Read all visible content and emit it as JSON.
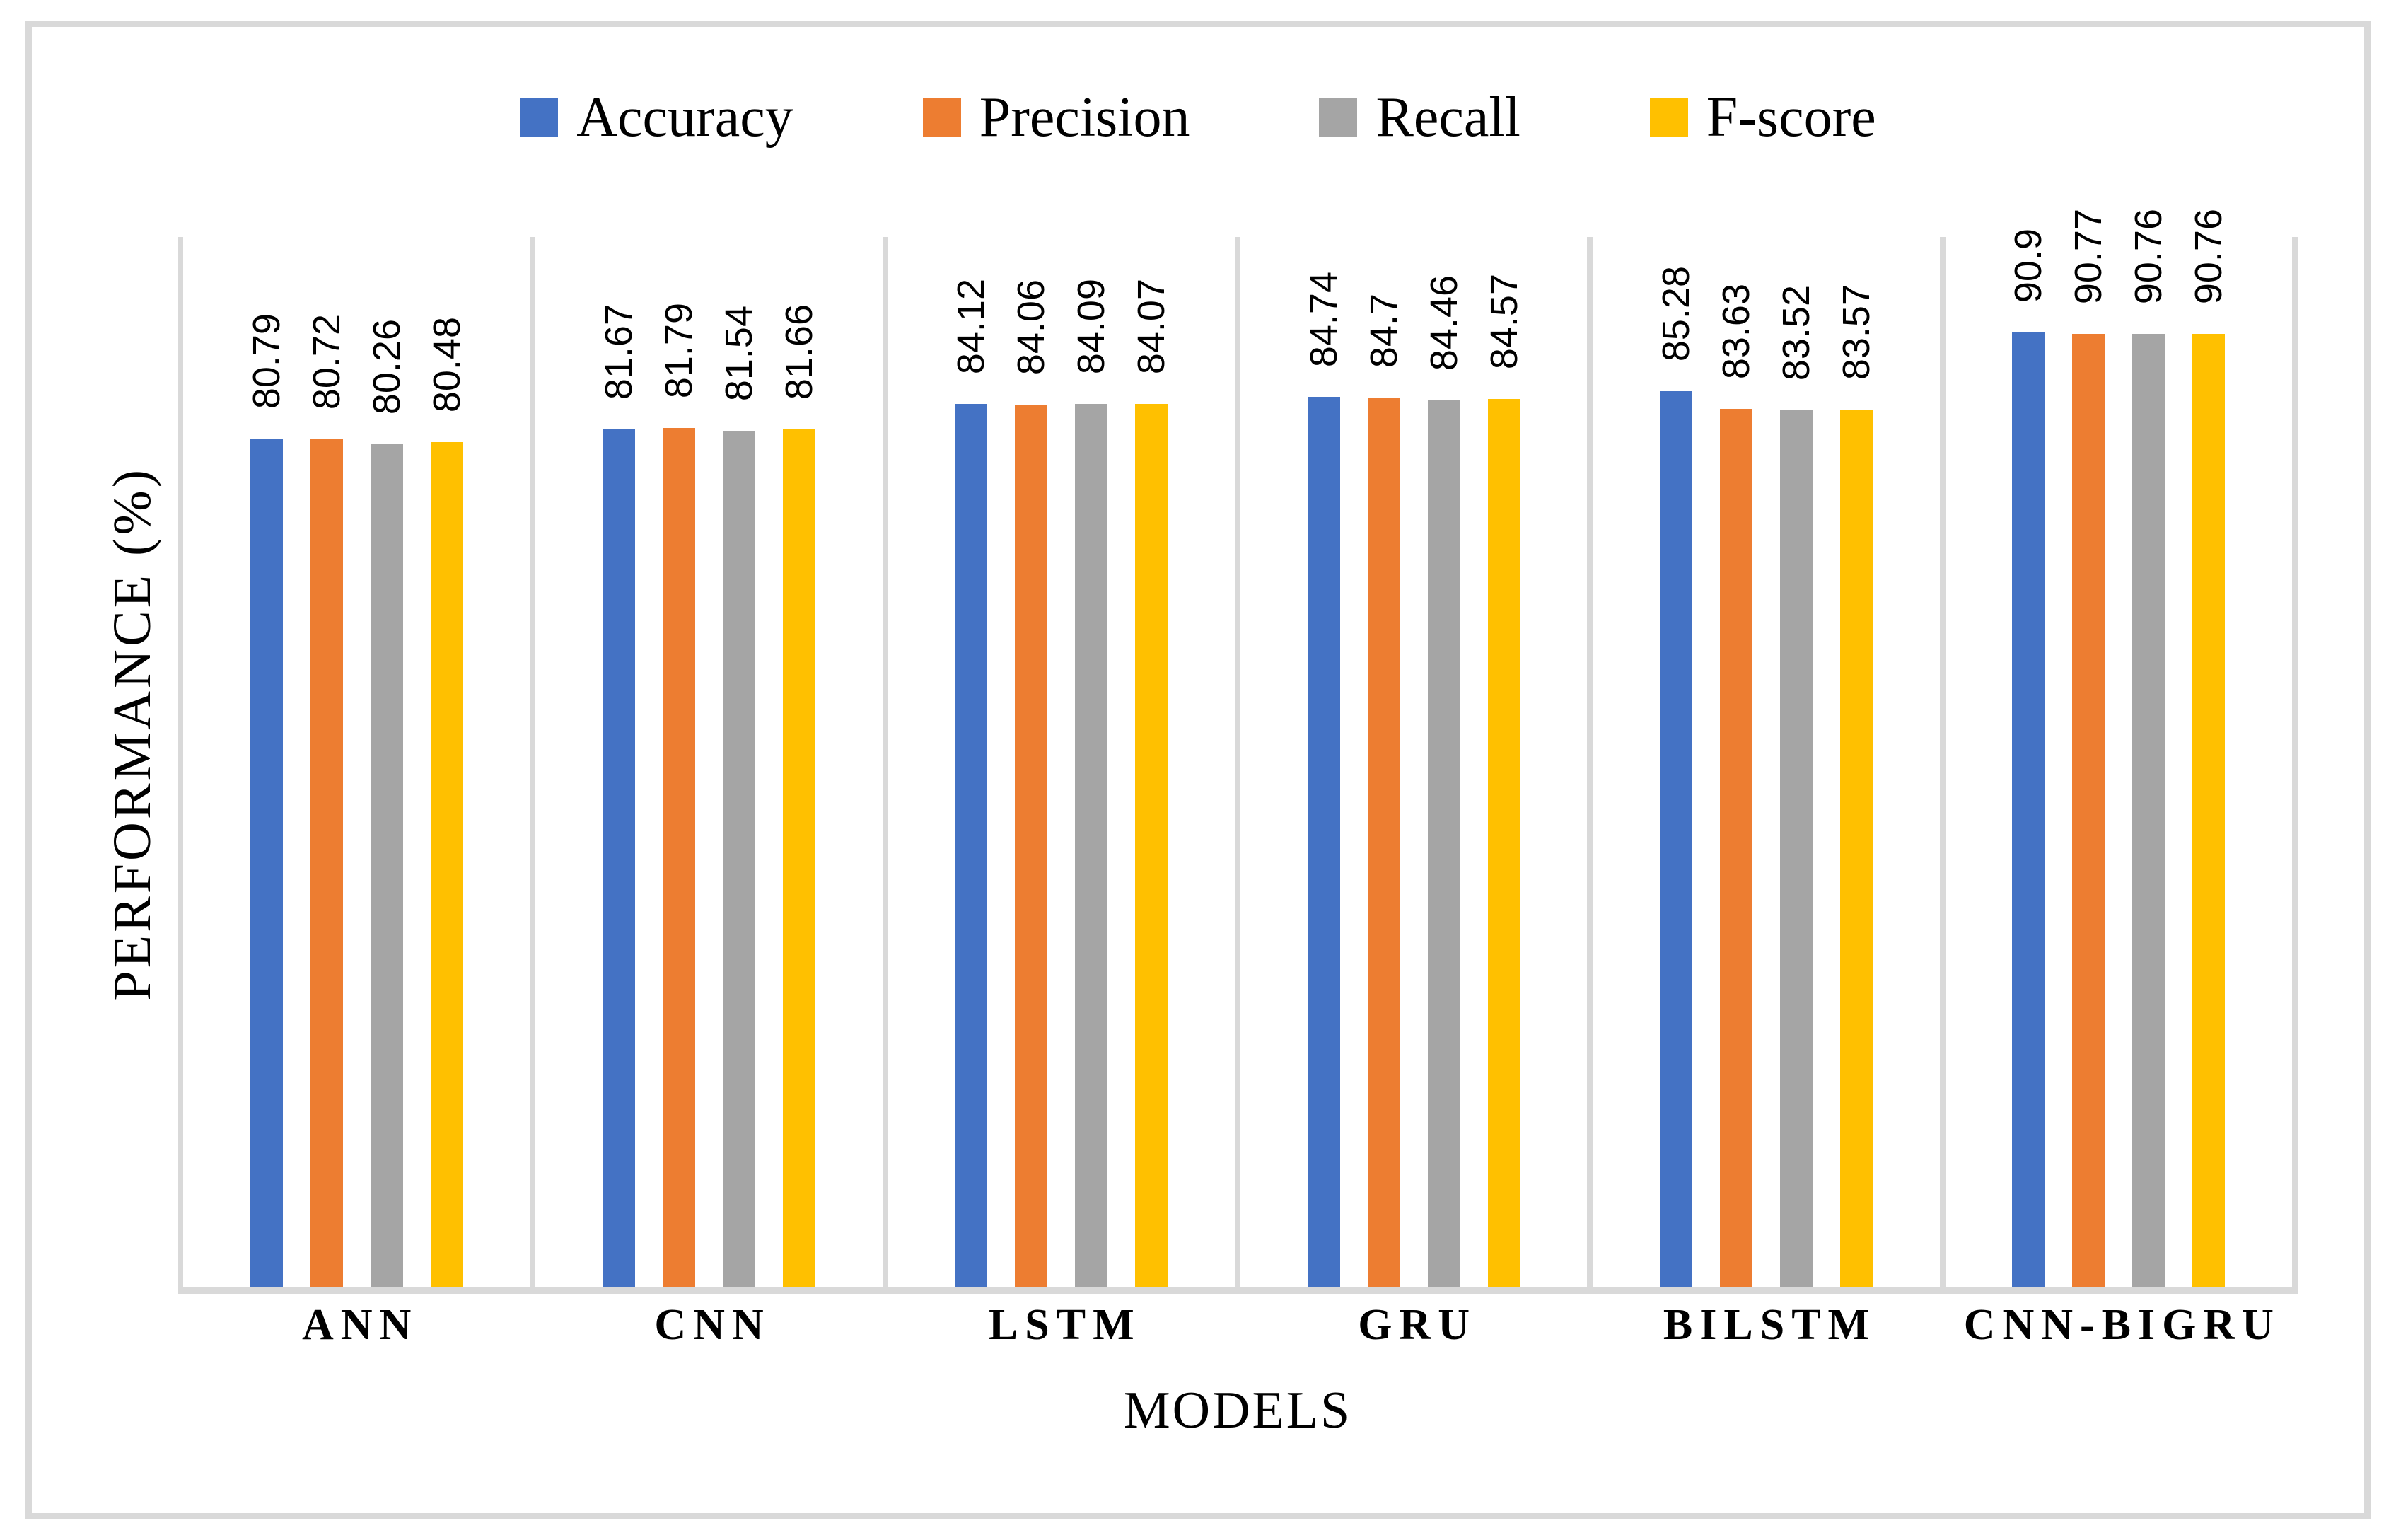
{
  "chart_data": {
    "type": "bar",
    "title": "",
    "categories": [
      "ANN",
      "CNN",
      "LSTM",
      "GRU",
      "BILSTM",
      "CNN-BIGRU"
    ],
    "series": [
      {
        "name": "Accuracy",
        "color": "#4472C4",
        "values": [
          80.79,
          81.67,
          84.12,
          84.74,
          85.28,
          90.9
        ]
      },
      {
        "name": "Precision",
        "color": "#ED7D31",
        "values": [
          80.72,
          81.79,
          84.06,
          84.7,
          83.63,
          90.77
        ]
      },
      {
        "name": "Recall",
        "color": "#A5A5A5",
        "values": [
          80.26,
          81.54,
          84.09,
          84.46,
          83.52,
          90.76
        ]
      },
      {
        "name": "F-score",
        "color": "#FFC000",
        "values": [
          80.48,
          81.66,
          84.07,
          84.57,
          83.57,
          90.76
        ]
      }
    ],
    "data_labels": [
      [
        "80.79",
        "80.72",
        "80.26",
        "80.48"
      ],
      [
        "81.67",
        "81.79",
        "81.54",
        "81.66"
      ],
      [
        "84.12",
        "84.06",
        "84.09",
        "84.07"
      ],
      [
        "84.74",
        "84.7",
        "84.46",
        "84.57"
      ],
      [
        "85.28",
        "83.63",
        "83.52",
        "83.57"
      ],
      [
        "90.9",
        "90.77",
        "90.76",
        "90.76"
      ]
    ],
    "xlabel": "MODELS",
    "ylabel": "PERFORMANCE (%)",
    "ylim": [
      0,
      100
    ],
    "y_axis_tick_labels_visible": false,
    "grid": "vertical category separator lines",
    "legend_position": "top",
    "data_label_style": "rotated 90 degrees above each bar"
  },
  "colors": {
    "background": "#FFFFFF",
    "frame_border": "#D9D9D9",
    "axis_and_gridlines": "#D9D9D9",
    "text": "#000000"
  }
}
